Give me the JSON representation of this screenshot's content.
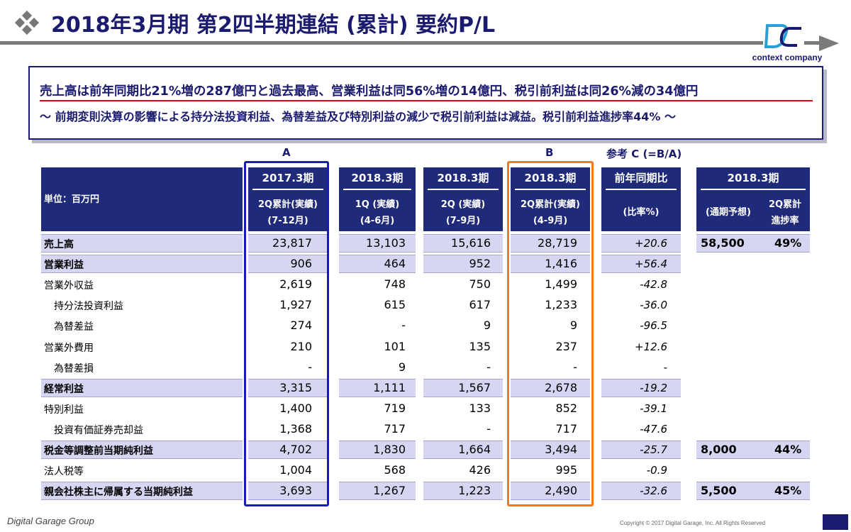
{
  "header": {
    "title": "2018年3月期 第2四半期連結 (累計) 要約P/L",
    "logo_text": "context company"
  },
  "summary": {
    "line1": "売上高は前年同期比21%増の287億円と過去最高、営業利益は同56%増の14億円、税引前利益は同26%減の34億円",
    "line2": "～ 前期変則決算の影響による持分法投資利益、為替差益及び特別利益の減少で税引前利益は減益。税引前利益進捗率44% ～"
  },
  "column_letters": {
    "a": "A",
    "b": "B",
    "c": "参考 C (=B/A)"
  },
  "table": {
    "unit_label": "単位：百万円",
    "columns": [
      {
        "main": "2017.3期",
        "sub1": "2Q累計(実績)",
        "sub2": "(7-12月)"
      },
      {
        "main": "2018.3期",
        "sub1": "1Q (実績)",
        "sub2": "(4-6月)"
      },
      {
        "main": "2018.3期",
        "sub1": "2Q (実績)",
        "sub2": "(7-9月)"
      },
      {
        "main": "2018.3期",
        "sub1": "2Q累計(実績)",
        "sub2": "(4-9月)"
      },
      {
        "main": "前年同期比",
        "sub1": "(比率%)",
        "sub2": ""
      }
    ],
    "forecast_header": {
      "main": "2018.3期",
      "left": "(通期予想)",
      "right1": "2Q累計",
      "right2": "進捗率"
    },
    "rows": [
      {
        "label": "売上高",
        "values": [
          "23,817",
          "13,103",
          "15,616",
          "28,719"
        ],
        "pct": "+20.6",
        "forecast": "58,500",
        "progress": "49%"
      },
      {
        "label": "営業利益",
        "values": [
          "906",
          "464",
          "952",
          "1,416"
        ],
        "pct": "+56.4",
        "forecast": "",
        "progress": ""
      },
      {
        "label": "営業外収益",
        "values": [
          "2,619",
          "748",
          "750",
          "1,499"
        ],
        "pct": "-42.8",
        "forecast": "",
        "progress": ""
      },
      {
        "label": "持分法投資利益",
        "values": [
          "1,927",
          "615",
          "617",
          "1,233"
        ],
        "pct": "-36.0",
        "forecast": "",
        "progress": ""
      },
      {
        "label": "為替差益",
        "values": [
          "274",
          "-",
          "9",
          "9"
        ],
        "pct": "-96.5",
        "forecast": "",
        "progress": ""
      },
      {
        "label": "営業外費用",
        "values": [
          "210",
          "101",
          "135",
          "237"
        ],
        "pct": "+12.6",
        "forecast": "",
        "progress": ""
      },
      {
        "label": "為替差損",
        "values": [
          "-",
          "9",
          "-",
          "-"
        ],
        "pct": "-",
        "forecast": "",
        "progress": ""
      },
      {
        "label": "経常利益",
        "values": [
          "3,315",
          "1,111",
          "1,567",
          "2,678"
        ],
        "pct": "-19.2",
        "forecast": "",
        "progress": ""
      },
      {
        "label": "特別利益",
        "values": [
          "1,400",
          "719",
          "133",
          "852"
        ],
        "pct": "-39.1",
        "forecast": "",
        "progress": ""
      },
      {
        "label": "投資有価証券売却益",
        "values": [
          "1,368",
          "717",
          "-",
          "717"
        ],
        "pct": "-47.6",
        "forecast": "",
        "progress": ""
      },
      {
        "label": "税金等調整前当期純利益",
        "values": [
          "4,702",
          "1,830",
          "1,664",
          "3,494"
        ],
        "pct": "-25.7",
        "forecast": "8,000",
        "progress": "44%"
      },
      {
        "label": "法人税等",
        "values": [
          "1,004",
          "568",
          "426",
          "995"
        ],
        "pct": "-0.9",
        "forecast": "",
        "progress": ""
      },
      {
        "label": "親会社株主に帰属する当期純利益",
        "values": [
          "3,693",
          "1,267",
          "1,223",
          "2,490"
        ],
        "pct": "-32.6",
        "forecast": "5,500",
        "progress": "45%"
      }
    ]
  },
  "footer": {
    "logo": "Digital Garage Group",
    "copyright": "Copyright © 2017 Digital Garage, Inc. All Rights Reserved"
  }
}
